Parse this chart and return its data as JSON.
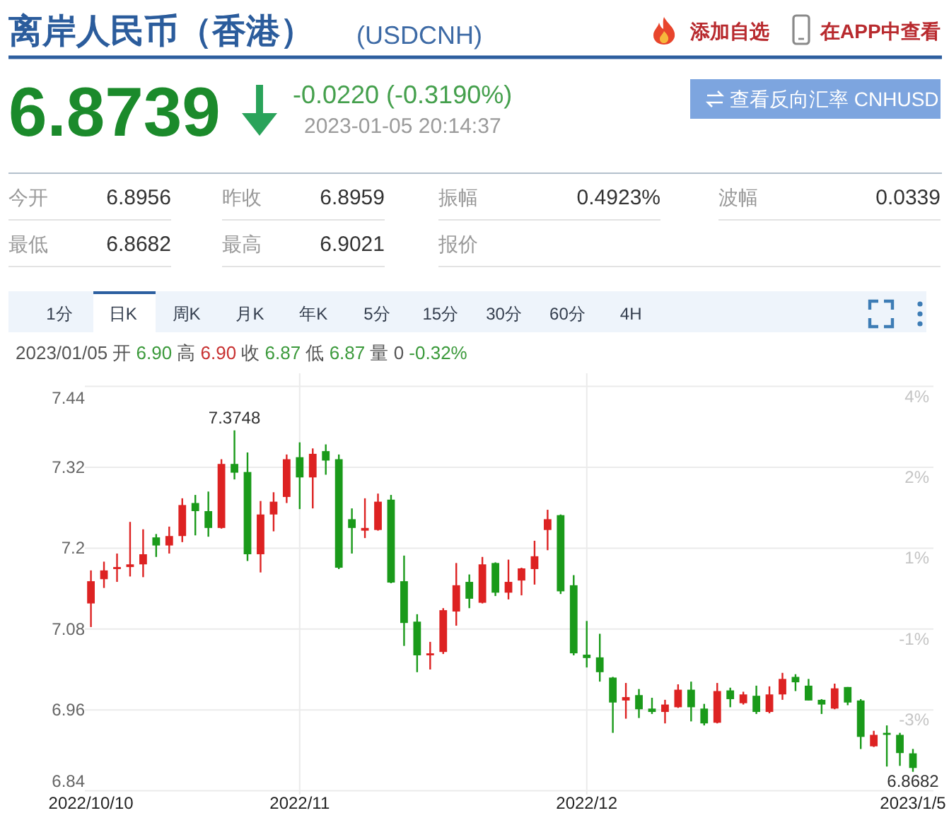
{
  "chart_data": {
    "type": "candlestick",
    "title": "离岸人民币（香港）",
    "subtitle": "(USDCNH)",
    "categories": [
      "2022/10/10",
      null,
      null,
      null,
      null,
      null,
      null,
      null,
      null,
      null,
      null,
      null,
      null,
      null,
      null,
      null,
      "2022/11",
      null,
      null,
      null,
      null,
      null,
      null,
      null,
      null,
      null,
      null,
      null,
      null,
      null,
      null,
      null,
      null,
      null,
      null,
      null,
      null,
      null,
      "2022/12",
      null,
      null,
      null,
      null,
      null,
      null,
      null,
      null,
      null,
      null,
      null,
      null,
      null,
      null,
      null,
      null,
      null,
      null,
      null,
      null,
      null,
      null,
      null,
      null,
      "2023/1/5"
    ],
    "ohlc": [
      [
        7.118,
        7.167,
        7.083,
        7.151
      ],
      [
        7.154,
        7.18,
        7.141,
        7.167
      ],
      [
        7.169,
        7.192,
        7.15,
        7.172
      ],
      [
        7.172,
        7.239,
        7.158,
        7.176
      ],
      [
        7.176,
        7.228,
        7.157,
        7.191
      ],
      [
        7.216,
        7.221,
        7.187,
        7.204
      ],
      [
        7.204,
        7.232,
        7.192,
        7.218
      ],
      [
        7.218,
        7.274,
        7.209,
        7.264
      ],
      [
        7.267,
        7.279,
        7.219,
        7.255
      ],
      [
        7.255,
        7.284,
        7.217,
        7.23
      ],
      [
        7.23,
        7.332,
        7.229,
        7.325
      ],
      [
        7.325,
        7.3748,
        7.302,
        7.312
      ],
      [
        7.313,
        7.342,
        7.181,
        7.191
      ],
      [
        7.191,
        7.27,
        7.164,
        7.25
      ],
      [
        7.25,
        7.283,
        7.225,
        7.269
      ],
      [
        7.276,
        7.339,
        7.267,
        7.332
      ],
      [
        7.335,
        7.357,
        7.258,
        7.305
      ],
      [
        7.305,
        7.348,
        7.259,
        7.34
      ],
      [
        7.344,
        7.354,
        7.309,
        7.33
      ],
      [
        7.332,
        7.339,
        7.169,
        7.171
      ],
      [
        7.243,
        7.259,
        7.192,
        7.23
      ],
      [
        7.226,
        7.274,
        7.215,
        7.23
      ],
      [
        7.227,
        7.281,
        7.226,
        7.269
      ],
      [
        7.272,
        7.279,
        7.148,
        7.149
      ],
      [
        7.151,
        7.189,
        7.055,
        7.089
      ],
      [
        7.091,
        7.102,
        7.016,
        7.041
      ],
      [
        7.041,
        7.061,
        7.02,
        7.044
      ],
      [
        7.046,
        7.111,
        7.043,
        7.108
      ],
      [
        7.106,
        7.178,
        7.085,
        7.145
      ],
      [
        7.15,
        7.161,
        7.111,
        7.125
      ],
      [
        7.119,
        7.187,
        7.118,
        7.176
      ],
      [
        7.178,
        7.179,
        7.129,
        7.134
      ],
      [
        7.134,
        7.183,
        7.124,
        7.15
      ],
      [
        7.152,
        7.171,
        7.13,
        7.17
      ],
      [
        7.169,
        7.211,
        7.146,
        7.188
      ],
      [
        7.227,
        7.257,
        7.197,
        7.243
      ],
      [
        7.249,
        7.25,
        7.132,
        7.136
      ],
      [
        7.145,
        7.16,
        7.041,
        7.044
      ],
      [
        7.042,
        7.092,
        7.023,
        7.037
      ],
      [
        7.038,
        7.073,
        7.002,
        7.016
      ],
      [
        7.008,
        7.009,
        6.926,
        6.971
      ],
      [
        6.974,
        7.0,
        6.947,
        6.979
      ],
      [
        6.982,
        6.991,
        6.948,
        6.961
      ],
      [
        6.962,
        6.978,
        6.954,
        6.957
      ],
      [
        6.957,
        6.975,
        6.94,
        6.968
      ],
      [
        6.964,
        6.998,
        6.963,
        6.99
      ],
      [
        6.99,
        7.002,
        6.943,
        6.964
      ],
      [
        6.962,
        6.969,
        6.937,
        6.94
      ],
      [
        6.941,
        7.0,
        6.94,
        6.988
      ],
      [
        6.989,
        6.993,
        6.964,
        6.976
      ],
      [
        6.97,
        6.987,
        6.968,
        6.983
      ],
      [
        6.981,
        6.996,
        6.954,
        6.957
      ],
      [
        6.957,
        6.995,
        6.955,
        6.983
      ],
      [
        6.983,
        7.015,
        6.975,
        7.006
      ],
      [
        7.009,
        7.013,
        6.988,
        7.001
      ],
      [
        6.996,
        7.006,
        6.974,
        6.974
      ],
      [
        6.975,
        6.976,
        6.954,
        6.968
      ],
      [
        6.962,
        6.999,
        6.961,
        6.992
      ],
      [
        6.994,
        6.994,
        6.967,
        6.971
      ],
      [
        6.974,
        6.976,
        6.902,
        6.92
      ],
      [
        6.906,
        6.929,
        6.905,
        6.923
      ],
      [
        6.926,
        6.937,
        6.876,
        6.923
      ],
      [
        6.923,
        6.926,
        6.877,
        6.896
      ],
      [
        6.8956,
        6.9021,
        6.8682,
        6.8739
      ]
    ],
    "colors": [
      "#dd2222",
      "#dd2222",
      "#dd2222",
      "#dd2222",
      "#dd2222",
      "#1a9a1a",
      "#dd2222",
      "#dd2222",
      "#1a9a1a",
      "#1a9a1a",
      "#dd2222",
      "#1a9a1a",
      "#1a9a1a",
      "#dd2222",
      "#dd2222",
      "#dd2222",
      "#1a9a1a",
      "#dd2222",
      "#1a9a1a",
      "#1a9a1a",
      "#1a9a1a",
      "#dd2222",
      "#dd2222",
      "#1a9a1a",
      "#1a9a1a",
      "#1a9a1a",
      "#dd2222",
      "#dd2222",
      "#dd2222",
      "#1a9a1a",
      "#dd2222",
      "#1a9a1a",
      "#dd2222",
      "#dd2222",
      "#dd2222",
      "#dd2222",
      "#1a9a1a",
      "#1a9a1a",
      "#1a9a1a",
      "#1a9a1a",
      "#1a9a1a",
      "#dd2222",
      "#1a9a1a",
      "#1a9a1a",
      "#dd2222",
      "#dd2222",
      "#1a9a1a",
      "#1a9a1a",
      "#dd2222",
      "#1a9a1a",
      "#dd2222",
      "#1a9a1a",
      "#dd2222",
      "#dd2222",
      "#1a9a1a",
      "#1a9a1a",
      "#1a9a1a",
      "#dd2222",
      "#1a9a1a",
      "#1a9a1a",
      "#dd2222",
      "#1a9a1a",
      "#1a9a1a",
      "#1a9a1a"
    ],
    "ylim": [
      6.84,
      7.44
    ],
    "yticks": [
      6.84,
      6.96,
      7.08,
      7.2,
      7.32,
      7.44
    ],
    "y2lim": [
      -4.39,
      4.0
    ],
    "y2ticks": [
      {
        "value": -2.71,
        "label": "-3%"
      },
      {
        "value": -1.03,
        "label": "-1%"
      },
      {
        "value": 0.65,
        "label": "1%"
      },
      {
        "value": 2.32,
        "label": "2%"
      },
      {
        "value": 4.0,
        "label": "4%"
      }
    ],
    "grid": true,
    "annotations": [
      "6.8739",
      "-0.0220 (-0.3190%)",
      "2023-01-05 20:14:37",
      "查看反向汇率 CNHUSD",
      "添加自选",
      "在APP中查看",
      "今开",
      "6.8956",
      "昨收",
      "6.8959",
      "振幅",
      "0.4923%",
      "波幅",
      "0.0339",
      "最低",
      "6.8682",
      "最高",
      "6.9021",
      "报价",
      "1分",
      "日K",
      "周K",
      "月K",
      "年K",
      "5分",
      "15分",
      "30分",
      "60分",
      "4H",
      "2023/01/05",
      "开",
      "6.90",
      "高",
      "6.90",
      "收",
      "6.87",
      "低",
      "6.87",
      "量 0",
      "-0.32%",
      {
        "text": "7.3748",
        "y": 7.3748
      },
      {
        "text": "6.8682",
        "y": 6.8682
      }
    ]
  }
}
